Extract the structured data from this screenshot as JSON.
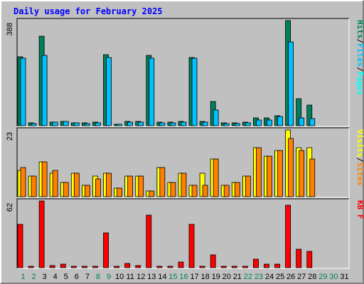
{
  "title": "Daily usage for February 2025",
  "colors": {
    "background": "#c0c0c0",
    "title": "#0000ff",
    "hits": "#00805c",
    "files": "#00c0ff",
    "pages": "#00ffff",
    "sites": "#ff8000",
    "visits": "#ffff00",
    "kbytes": "#ff0000",
    "weekend_label": "#00805c",
    "weekday_label": "#000000"
  },
  "chart_data": {
    "type": "bar",
    "categories": [
      "1",
      "2",
      "3",
      "4",
      "5",
      "6",
      "7",
      "8",
      "9",
      "10",
      "11",
      "12",
      "13",
      "14",
      "15",
      "16",
      "17",
      "18",
      "19",
      "20",
      "21",
      "22",
      "23",
      "24",
      "25",
      "26",
      "27",
      "28",
      "29",
      "30",
      "31"
    ],
    "weekend_days": [
      "1",
      "2",
      "8",
      "9",
      "15",
      "16",
      "22",
      "23",
      "29",
      "30"
    ],
    "panels": [
      {
        "name": "hits-files-pages",
        "scale_max_label": "388",
        "ymax": 388,
        "side_label": [
          {
            "text": "Hits",
            "color_key": "hits"
          },
          {
            "text": "/",
            "color_key": "weekday_label"
          },
          {
            "text": "Files",
            "color_key": "files"
          },
          {
            "text": "/",
            "color_key": "weekday_label"
          },
          {
            "text": "Pages",
            "color_key": "pages"
          }
        ],
        "series": [
          {
            "name": "Hits",
            "color_key": "hits",
            "values": [
              253,
              10,
              330,
              14,
              17,
              11,
              10,
              12,
              262,
              5,
              16,
              15,
              260,
              12,
              12,
              17,
              252,
              15,
              90,
              10,
              10,
              12,
              30,
              28,
              38,
              388,
              100,
              75,
              0,
              0,
              0
            ]
          },
          {
            "name": "Files",
            "color_key": "files",
            "values": [
              250,
              9,
              260,
              12,
              15,
              10,
              9,
              11,
              252,
              4,
              14,
              13,
              248,
              11,
              11,
              14,
              250,
              13,
              58,
              9,
              8,
              11,
              22,
              22,
              34,
              310,
              30,
              25,
              0,
              0,
              0
            ]
          },
          {
            "name": "Pages",
            "color_key": "pages",
            "values": [
              0,
              0,
              0,
              0,
              0,
              0,
              0,
              0,
              0,
              0,
              0,
              0,
              0,
              0,
              0,
              0,
              0,
              0,
              0,
              0,
              0,
              0,
              0,
              0,
              0,
              0,
              0,
              0,
              0,
              0,
              0
            ]
          }
        ]
      },
      {
        "name": "visits-sites",
        "scale_max_label": "23",
        "ymax": 23,
        "side_label": [
          {
            "text": "Visits",
            "color_key": "visits"
          },
          {
            "text": "/",
            "color_key": "weekday_label"
          },
          {
            "text": "Sites",
            "color_key": "sites"
          }
        ],
        "series": [
          {
            "name": "Visits",
            "color_key": "visits",
            "values": [
              9,
              7,
              12,
              8,
              5,
              8,
              4,
              7,
              8,
              3,
              7,
              7,
              2,
              10,
              5,
              8,
              4,
              8,
              13,
              4,
              5,
              7,
              17,
              14,
              16,
              23,
              17,
              17,
              0,
              0,
              0
            ]
          },
          {
            "name": "Sites",
            "color_key": "sites",
            "values": [
              10,
              7,
              12,
              9,
              5,
              8,
              4,
              6,
              8,
              3,
              7,
              7,
              2,
              10,
              5,
              8,
              4,
              4,
              13,
              4,
              5,
              7,
              17,
              14,
              16,
              20,
              16,
              13,
              0,
              0,
              0
            ]
          }
        ]
      },
      {
        "name": "kbytes",
        "scale_max_label": "62",
        "ymax": 62,
        "side_label": [
          {
            "text": "KB F",
            "color_key": "kbytes"
          }
        ],
        "series": [
          {
            "name": "KB F",
            "color_key": "kbytes",
            "values": [
              40,
              1,
              62,
              2,
              3,
              1,
              1,
              1,
              32,
              1,
              4,
              2,
              49,
              1,
              1,
              5,
              40,
              1,
              12,
              1,
              1,
              1,
              8,
              3,
              3,
              58,
              17,
              15,
              0,
              0,
              0
            ]
          }
        ]
      }
    ]
  }
}
